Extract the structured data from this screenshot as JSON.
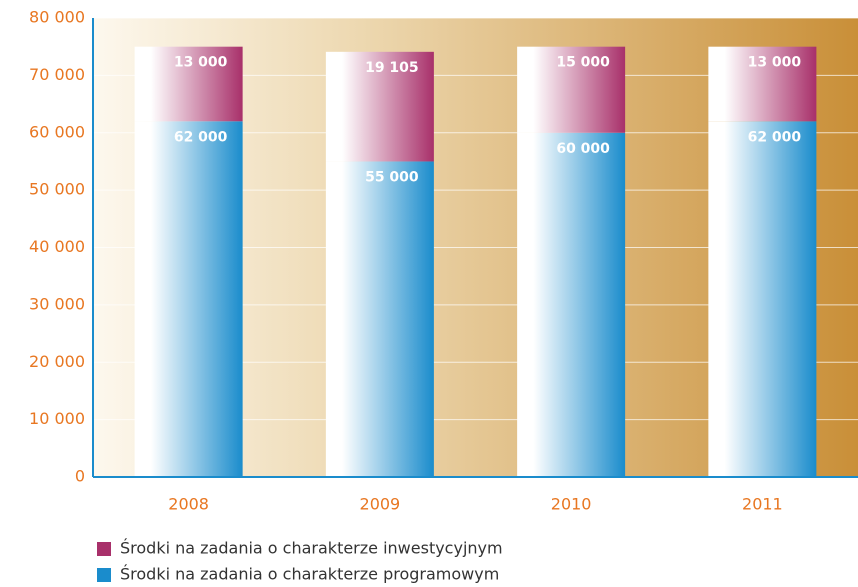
{
  "chart_data": {
    "type": "stacked_bar",
    "categories": [
      "2008",
      "2009",
      "2010",
      "2011"
    ],
    "series": [
      {
        "name": "Środki na zadania o charakterze inwestycyjnym",
        "color": "#a8306a",
        "values": [
          13000,
          19105,
          15000,
          13000
        ],
        "value_labels": [
          "13 000",
          "19 105",
          "15 000",
          "13 000"
        ]
      },
      {
        "name": "Środki na zadania o charakterze programowym",
        "color": "#1a8ccc",
        "values": [
          62000,
          55000,
          60000,
          62000
        ],
        "value_labels": [
          "62 000",
          "55 000",
          "60 000",
          "62 000"
        ]
      }
    ],
    "ylim": [
      0,
      80000
    ],
    "yticks": [
      {
        "value": 0,
        "label": "0"
      },
      {
        "value": 10000,
        "label": "10 000"
      },
      {
        "value": 20000,
        "label": "20 000"
      },
      {
        "value": 30000,
        "label": "30 000"
      },
      {
        "value": 40000,
        "label": "40 000"
      },
      {
        "value": 50000,
        "label": "50 000"
      },
      {
        "value": 60000,
        "label": "60 000"
      },
      {
        "value": 70000,
        "label": "70 000"
      },
      {
        "value": 80000,
        "label": "80 000"
      }
    ],
    "grid": true
  }
}
